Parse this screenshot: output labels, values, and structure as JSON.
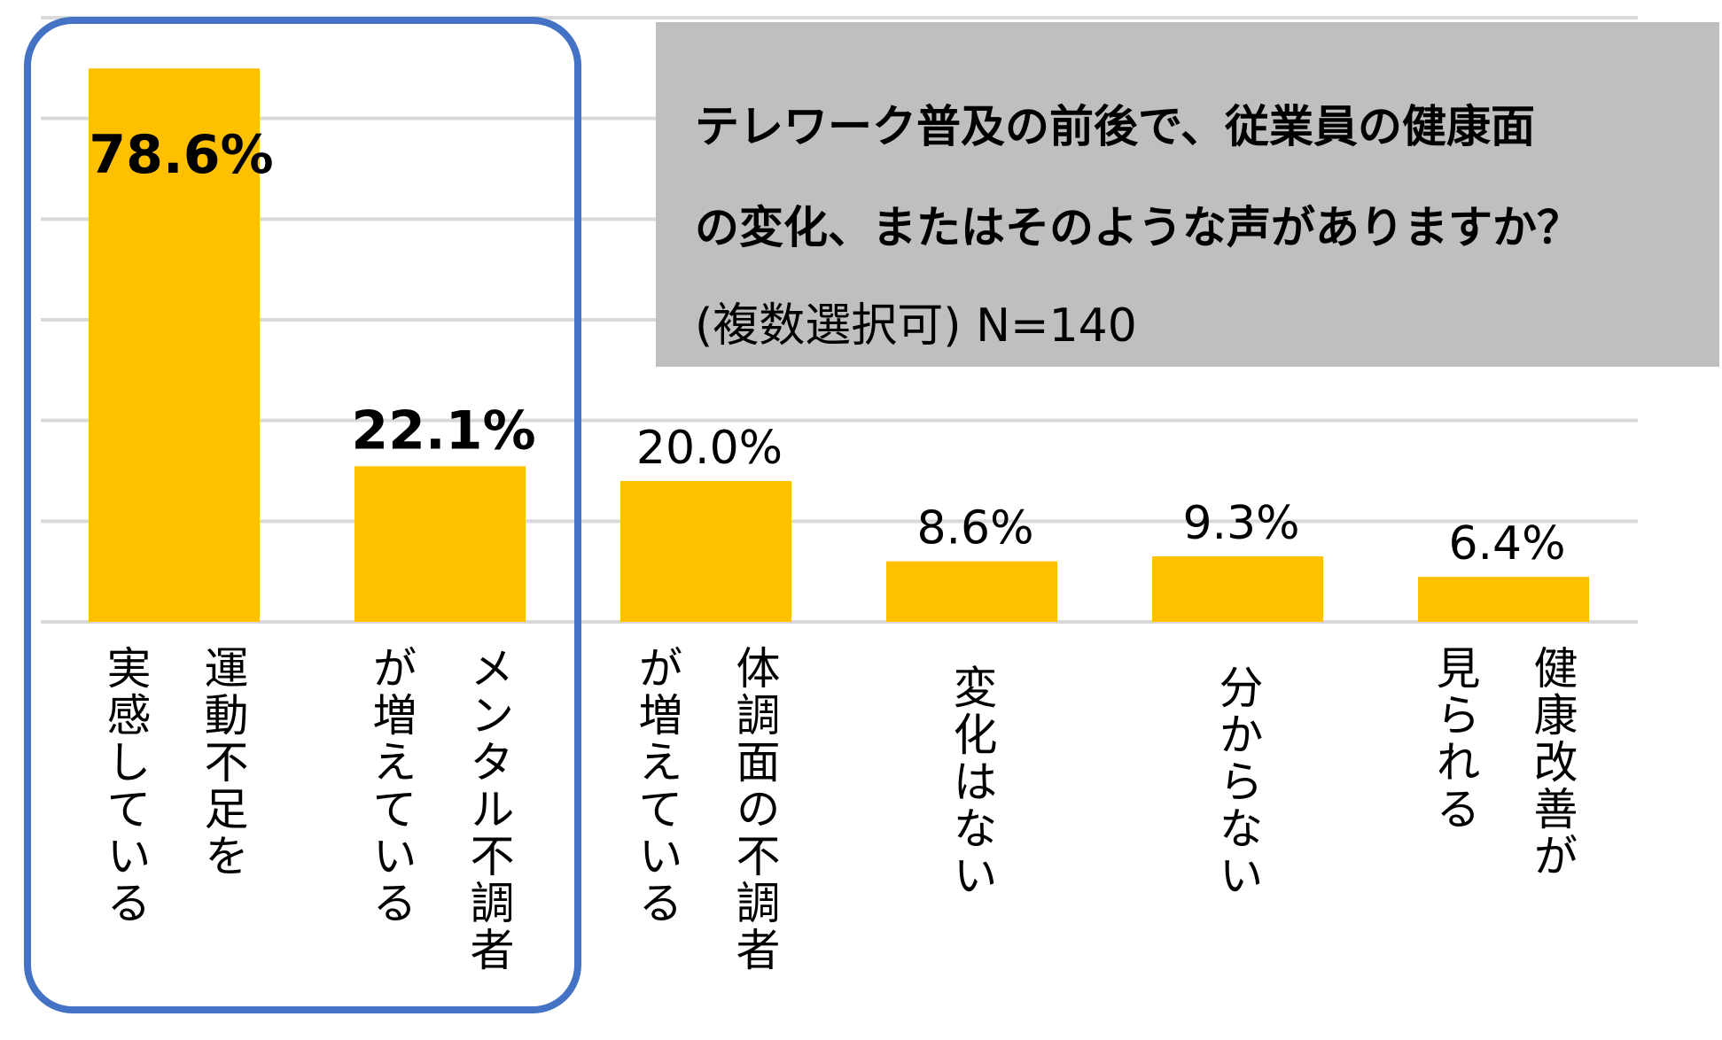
{
  "title": {
    "line1": "テレワーク普及の前後で、従業員の健康面",
    "line2": "の変化、またはそのような声がありますか？",
    "line3": "(複数選択可) N=140"
  },
  "chart_data": {
    "type": "bar",
    "categories": [
      "運動不足を\n実感している",
      "メンタル不調者\nが増えている",
      "体調面の不調者\nが増えている",
      "変化はない",
      "分からない",
      "健康改善が\n見られる"
    ],
    "values": [
      78.6,
      22.1,
      20.0,
      8.6,
      9.3,
      6.4
    ],
    "data_labels": [
      "78.6%",
      "22.1%",
      "20.0%",
      "8.6%",
      "9.3%",
      "6.4%"
    ],
    "highlighted": [
      0,
      1
    ],
    "ylim": [
      0,
      85.8
    ],
    "gridlines": 6,
    "grid": true,
    "bar_color": "#ffc000",
    "grid_color": "#d9d9d9",
    "highlight_color": "#4472c4",
    "title_box_color": "#bfbfbf"
  }
}
